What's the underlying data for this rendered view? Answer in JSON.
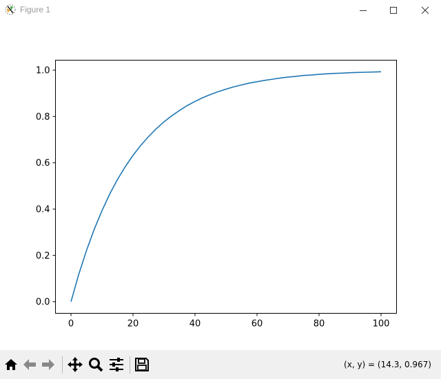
{
  "window": {
    "title": "Figure 1",
    "icons": [
      "matplotlib-icon",
      "minimize-icon",
      "maximize-icon",
      "close-icon"
    ]
  },
  "toolbar": {
    "buttons": [
      "home-icon",
      "back-icon",
      "forward-icon",
      "pan-icon",
      "zoom-icon",
      "configure-subplots-icon",
      "save-icon"
    ],
    "coords": "(x, y) = (14.3, 0.967)"
  },
  "chart_data": {
    "type": "line",
    "xlim": [
      -5,
      105
    ],
    "ylim": [
      -0.05,
      1.043
    ],
    "grid": false,
    "xticks": [
      0,
      20,
      40,
      60,
      80,
      100
    ],
    "xtick_labels": [
      "0",
      "20",
      "40",
      "60",
      "80",
      "100"
    ],
    "yticks": [
      0,
      0.2,
      0.4,
      0.6,
      0.8,
      1.0
    ],
    "ytick_labels": [
      "0.0",
      "0.2",
      "0.4",
      "0.6",
      "0.8",
      "1.0"
    ],
    "series": [
      {
        "color": "#1f77b4",
        "x": [
          0,
          2.5,
          5,
          7.5,
          10,
          12.5,
          15,
          17.5,
          20,
          22.5,
          25,
          27.5,
          30,
          32.5,
          35,
          37.5,
          40,
          42.5,
          45,
          47.5,
          50,
          52.5,
          55,
          57.5,
          60,
          62.5,
          65,
          67.5,
          70,
          72.5,
          75,
          77.5,
          80,
          82.5,
          85,
          87.5,
          90,
          92.5,
          95,
          97.5,
          100
        ],
        "y": [
          0,
          0.118,
          0.221,
          0.313,
          0.393,
          0.465,
          0.528,
          0.583,
          0.632,
          0.675,
          0.713,
          0.747,
          0.777,
          0.803,
          0.826,
          0.847,
          0.865,
          0.881,
          0.895,
          0.907,
          0.918,
          0.928,
          0.936,
          0.944,
          0.95,
          0.956,
          0.961,
          0.966,
          0.97,
          0.973,
          0.977,
          0.979,
          0.982,
          0.984,
          0.986,
          0.987,
          0.989,
          0.99,
          0.991,
          0.992,
          0.993
        ]
      }
    ]
  }
}
